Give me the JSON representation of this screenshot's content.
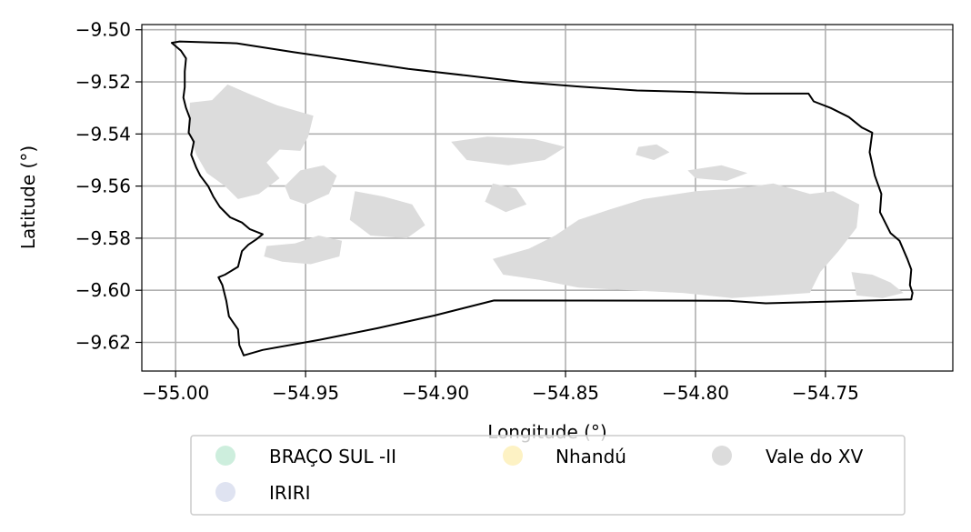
{
  "chart_data": {
    "type": "map",
    "xlabel": "Longitude (°)",
    "ylabel": "Latitude (°)",
    "xlim": [
      -55.013,
      -54.701
    ],
    "ylim": [
      -9.631,
      -9.498
    ],
    "x_ticks": [
      -55.0,
      -54.95,
      -54.9,
      -54.85,
      -54.8,
      -54.75
    ],
    "x_tick_labels": [
      "−55.00",
      "−54.95",
      "−54.90",
      "−54.85",
      "−54.80",
      "−54.75"
    ],
    "y_ticks": [
      -9.5,
      -9.52,
      -9.54,
      -9.56,
      -9.58,
      -9.6,
      -9.62
    ],
    "y_tick_labels": [
      "−9.50",
      "−9.52",
      "−9.54",
      "−9.56",
      "−9.58",
      "−9.60",
      "−9.62"
    ],
    "grid": true,
    "legend_position": "below",
    "legend": [
      {
        "name": "BRAÇO SUL -II",
        "color": "#cdeedd"
      },
      {
        "name": "Nhandú",
        "color": "#fdf2c4"
      },
      {
        "name": "Vale do XV",
        "color": "#dcdcdc"
      },
      {
        "name": "IRIRI",
        "color": "#dfe3f1"
      }
    ],
    "boundary_color": "#000000",
    "fill_color": "#dcdcdc",
    "boundary": [
      [
        -55.0015,
        -9.505
      ],
      [
        -54.9985,
        -9.5045
      ],
      [
        -54.9765,
        -9.5052
      ],
      [
        -54.9545,
        -9.5086
      ],
      [
        -54.9325,
        -9.5118
      ],
      [
        -54.9105,
        -9.515
      ],
      [
        -54.8885,
        -9.5175
      ],
      [
        -54.8665,
        -9.5201
      ],
      [
        -54.8445,
        -9.5218
      ],
      [
        -54.8225,
        -9.5233
      ],
      [
        -54.8005,
        -9.5239
      ],
      [
        -54.7805,
        -9.5245
      ],
      [
        -54.7565,
        -9.5245
      ],
      [
        -54.7545,
        -9.5275
      ],
      [
        -54.748,
        -9.53
      ],
      [
        -54.741,
        -9.5335
      ],
      [
        -54.736,
        -9.5375
      ],
      [
        -54.732,
        -9.5395
      ],
      [
        -54.733,
        -9.547
      ],
      [
        -54.731,
        -9.556
      ],
      [
        -54.7285,
        -9.563
      ],
      [
        -54.729,
        -9.57
      ],
      [
        -54.725,
        -9.578
      ],
      [
        -54.7215,
        -9.581
      ],
      [
        -54.7185,
        -9.588
      ],
      [
        -54.717,
        -9.592
      ],
      [
        -54.7175,
        -9.598
      ],
      [
        -54.7165,
        -9.601
      ],
      [
        -54.717,
        -9.6035
      ],
      [
        -54.773,
        -9.605
      ],
      [
        -54.787,
        -9.604
      ],
      [
        -54.8775,
        -9.6039
      ],
      [
        -54.9005,
        -9.6097
      ],
      [
        -54.9225,
        -9.6146
      ],
      [
        -54.9445,
        -9.619
      ],
      [
        -54.9665,
        -9.6229
      ],
      [
        -54.9738,
        -9.625
      ],
      [
        -54.9755,
        -9.621
      ],
      [
        -54.976,
        -9.615
      ],
      [
        -54.9795,
        -9.61
      ],
      [
        -54.9805,
        -9.604
      ],
      [
        -54.982,
        -9.598
      ],
      [
        -54.9835,
        -9.595
      ],
      [
        -54.981,
        -9.594
      ],
      [
        -54.976,
        -9.591
      ],
      [
        -54.9745,
        -9.585
      ],
      [
        -54.972,
        -9.5825
      ],
      [
        -54.969,
        -9.5805
      ],
      [
        -54.9665,
        -9.5785
      ],
      [
        -54.9715,
        -9.5765
      ],
      [
        -54.9745,
        -9.574
      ],
      [
        -54.979,
        -9.572
      ],
      [
        -54.983,
        -9.568
      ],
      [
        -54.9855,
        -9.564
      ],
      [
        -54.9875,
        -9.56
      ],
      [
        -54.9905,
        -9.556
      ],
      [
        -54.992,
        -9.553
      ],
      [
        -54.994,
        -9.548
      ],
      [
        -54.993,
        -9.543
      ],
      [
        -54.995,
        -9.5395
      ],
      [
        -54.9945,
        -9.534
      ],
      [
        -54.996,
        -9.53
      ],
      [
        -54.997,
        -9.526
      ],
      [
        -54.9965,
        -9.522
      ],
      [
        -54.9965,
        -9.516
      ],
      [
        -54.996,
        -9.511
      ],
      [
        -54.998,
        -9.508
      ],
      [
        -55.0015,
        -9.505
      ]
    ],
    "regions": [
      [
        [
          -54.9945,
          -9.528
        ],
        [
          -54.986,
          -9.527
        ],
        [
          -54.98,
          -9.521
        ],
        [
          -54.972,
          -9.5245
        ],
        [
          -54.961,
          -9.529
        ],
        [
          -54.954,
          -9.531
        ],
        [
          -54.947,
          -9.533
        ],
        [
          -54.949,
          -9.541
        ],
        [
          -54.952,
          -9.5465
        ],
        [
          -54.96,
          -9.546
        ],
        [
          -54.965,
          -9.551
        ],
        [
          -54.96,
          -9.557
        ],
        [
          -54.968,
          -9.563
        ],
        [
          -54.976,
          -9.565
        ],
        [
          -54.981,
          -9.56
        ],
        [
          -54.988,
          -9.555
        ],
        [
          -54.992,
          -9.548
        ],
        [
          -54.995,
          -9.539
        ]
      ],
      [
        [
          -54.958,
          -9.56
        ],
        [
          -54.952,
          -9.554
        ],
        [
          -54.943,
          -9.552
        ],
        [
          -54.938,
          -9.556
        ],
        [
          -54.941,
          -9.563
        ],
        [
          -54.95,
          -9.567
        ],
        [
          -54.956,
          -9.565
        ]
      ],
      [
        [
          -54.931,
          -9.562
        ],
        [
          -54.92,
          -9.564
        ],
        [
          -54.909,
          -9.567
        ],
        [
          -54.904,
          -9.575
        ],
        [
          -54.911,
          -9.58
        ],
        [
          -54.925,
          -9.579
        ],
        [
          -54.933,
          -9.573
        ]
      ],
      [
        [
          -54.965,
          -9.583
        ],
        [
          -54.954,
          -9.582
        ],
        [
          -54.945,
          -9.579
        ],
        [
          -54.936,
          -9.581
        ],
        [
          -54.937,
          -9.587
        ],
        [
          -54.948,
          -9.59
        ],
        [
          -54.959,
          -9.589
        ],
        [
          -54.966,
          -9.587
        ]
      ],
      [
        [
          -54.894,
          -9.543
        ],
        [
          -54.88,
          -9.541
        ],
        [
          -54.862,
          -9.542
        ],
        [
          -54.85,
          -9.545
        ],
        [
          -54.858,
          -9.55
        ],
        [
          -54.872,
          -9.552
        ],
        [
          -54.888,
          -9.55
        ]
      ],
      [
        [
          -54.878,
          -9.559
        ],
        [
          -54.869,
          -9.561
        ],
        [
          -54.865,
          -9.567
        ],
        [
          -54.873,
          -9.57
        ],
        [
          -54.881,
          -9.566
        ]
      ],
      [
        [
          -54.82,
          -9.565
        ],
        [
          -54.8,
          -9.562
        ],
        [
          -54.785,
          -9.561
        ],
        [
          -54.77,
          -9.559
        ],
        [
          -54.756,
          -9.563
        ],
        [
          -54.747,
          -9.562
        ],
        [
          -54.737,
          -9.567
        ],
        [
          -54.738,
          -9.576
        ],
        [
          -54.745,
          -9.585
        ],
        [
          -54.752,
          -9.593
        ],
        [
          -54.756,
          -9.601
        ],
        [
          -54.77,
          -9.602
        ],
        [
          -54.786,
          -9.603
        ],
        [
          -54.805,
          -9.601
        ],
        [
          -54.825,
          -9.6
        ],
        [
          -54.845,
          -9.599
        ],
        [
          -54.86,
          -9.596
        ],
        [
          -54.874,
          -9.594
        ],
        [
          -54.878,
          -9.588
        ],
        [
          -54.864,
          -9.584
        ],
        [
          -54.854,
          -9.579
        ],
        [
          -54.845,
          -9.573
        ],
        [
          -54.833,
          -9.569
        ]
      ],
      [
        [
          -54.74,
          -9.593
        ],
        [
          -54.732,
          -9.594
        ],
        [
          -54.725,
          -9.597
        ],
        [
          -54.72,
          -9.601
        ],
        [
          -54.728,
          -9.603
        ],
        [
          -54.738,
          -9.602
        ]
      ],
      [
        [
          -54.822,
          -9.545
        ],
        [
          -54.815,
          -9.544
        ],
        [
          -54.81,
          -9.547
        ],
        [
          -54.816,
          -9.55
        ],
        [
          -54.823,
          -9.548
        ]
      ],
      [
        [
          -54.803,
          -9.554
        ],
        [
          -54.79,
          -9.552
        ],
        [
          -54.78,
          -9.555
        ],
        [
          -54.788,
          -9.558
        ],
        [
          -54.8,
          -9.557
        ]
      ]
    ]
  }
}
